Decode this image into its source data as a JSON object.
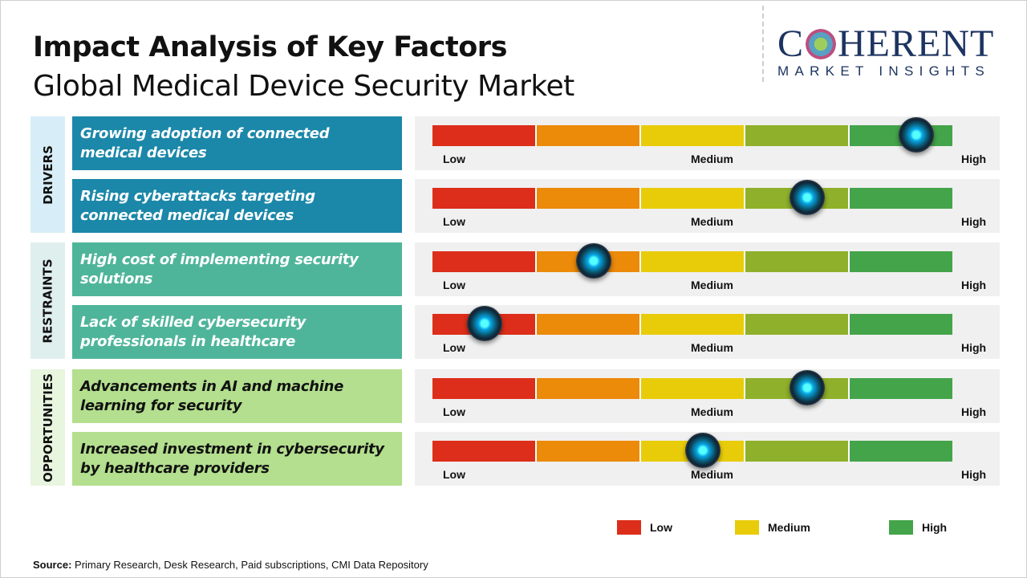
{
  "header": {
    "title": "Impact Analysis of Key Factors",
    "subtitle": "Global Medical Device Security Market"
  },
  "logo": {
    "name": "COHERENT",
    "tagline": "MARKET INSIGHTS"
  },
  "scale": {
    "low": "Low",
    "medium": "Medium",
    "high": "High",
    "colors": [
      "#dc2e1a",
      "#ec8a0a",
      "#e8cc0a",
      "#8fb02a",
      "#44a44a"
    ]
  },
  "categories": [
    {
      "label": "DRIVERS",
      "box_color": "#1b87a9",
      "text_color": "#ffffff",
      "side_color": "#d7eef8",
      "factors": [
        {
          "text": "Growing adoption of connected medical devices",
          "impact": 0.93
        },
        {
          "text": "Rising cyberattacks targeting connected medical devices",
          "impact": 0.72
        }
      ]
    },
    {
      "label": "RESTRAINTS",
      "box_color": "#4fb59a",
      "text_color": "#ffffff",
      "side_color": "#dfefee",
      "factors": [
        {
          "text": "High cost of implementing security solutions",
          "impact": 0.31
        },
        {
          "text": "Lack of skilled cybersecurity professionals in healthcare",
          "impact": 0.1
        }
      ]
    },
    {
      "label": "OPPORTUNITIES",
      "box_color": "#b3df8e",
      "text_color": "#111111",
      "side_color": "#e8f5df",
      "factors": [
        {
          "text": "Advancements in AI and machine learning for security",
          "impact": 0.72
        },
        {
          "text": "Increased investment in cybersecurity by healthcare providers",
          "impact": 0.52
        }
      ]
    }
  ],
  "legend": [
    {
      "label": "Low",
      "color": "#dc2e1a"
    },
    {
      "label": "Medium",
      "color": "#e8cc0a"
    },
    {
      "label": "High",
      "color": "#44a44a"
    }
  ],
  "source": {
    "label": "Source:",
    "text": " Primary Research, Desk Research, Paid subscriptions, CMI Data Repository"
  }
}
